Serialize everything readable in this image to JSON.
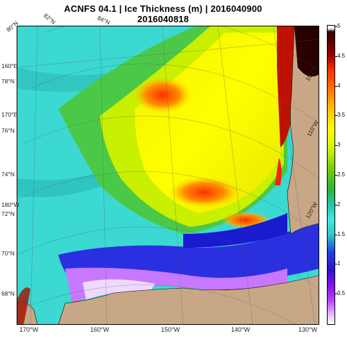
{
  "header": {
    "title": "ACNFS 04.1  |  Ice Thickness (m)  |  2016040900",
    "subtitle": "2016040818"
  },
  "map": {
    "lon_labels_bottom": [
      "170°W",
      "160°W",
      "150°W",
      "140°W",
      "130°W"
    ],
    "lon_labels_top": [
      "80°N",
      "82°N",
      "84°N"
    ],
    "lat_labels_left": [
      "78°N",
      "76°N",
      "74°N",
      "72°N",
      "70°N",
      "68°N"
    ],
    "lon_labels_left": [
      "160°E",
      "170°E",
      "180°W"
    ],
    "lon_labels_right": [
      "100°W",
      "110°W",
      "120°W"
    ],
    "colors": {
      "land": "#c8a787",
      "open_water_ice_thin": "#40e0d8",
      "thick_ice": "#ffff00",
      "very_thick_ice": "#ff3000",
      "coastline": "#000000"
    }
  },
  "colorbar": {
    "labels": [
      "5",
      "4.5",
      "4",
      "3.5",
      "3",
      "2.5",
      "2",
      "1.5",
      "1",
      "0.5"
    ],
    "min": 0,
    "max": 5,
    "unit": "m"
  }
}
